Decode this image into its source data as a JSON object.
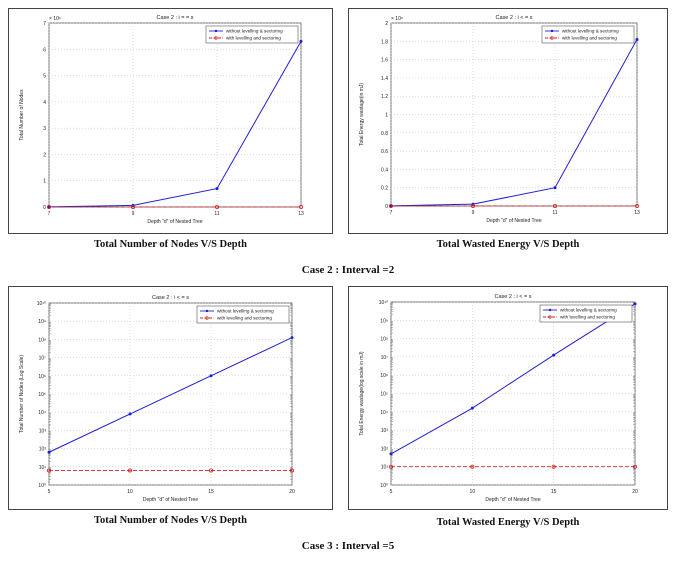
{
  "colors": {
    "primary": "#1f1fcf",
    "secondary": "#d02020"
  },
  "captions": {
    "c1": "Total Number of Nodes V/S Depth",
    "c2": "Total Wasted Energy V/S Depth",
    "case2": "Case 2 : Interval =2",
    "c3": "Total Number of Nodes V/S Depth",
    "c4": "Total Wasted Energy V/S Depth",
    "case3": "Case 3 : Interval =5"
  },
  "chart_data": [
    {
      "type": "line",
      "title": "Case 2 : i = = s",
      "xlabel": "Depth \"d\" of Nested Tree",
      "ylabel": "Total Number of Nodes",
      "exponent": "× 10⁶",
      "yscale": "linear",
      "xlim": [
        7,
        13
      ],
      "ylim": [
        0,
        7
      ],
      "xticks": [
        7,
        9,
        11,
        13
      ],
      "yticks": [
        0,
        1,
        2,
        3,
        4,
        5,
        6,
        7
      ],
      "grid": true,
      "legend": "top-right",
      "series": [
        {
          "name": "without levelling & sectoring",
          "x": [
            7,
            9,
            11,
            13
          ],
          "y": [
            0.005,
            0.06,
            0.7,
            6.3
          ]
        },
        {
          "name": "with levelling and sectoring",
          "x": [
            7,
            9,
            11,
            13
          ],
          "y": [
            0.001,
            0.001,
            0.001,
            0.001
          ]
        }
      ]
    },
    {
      "type": "line",
      "title": "Case 2 : i < = s",
      "xlabel": "Depth \"d\" of Nested Tree",
      "ylabel": "Total Energy wastage(in mJ)",
      "exponent": "× 10⁶",
      "yscale": "linear",
      "xlim": [
        7,
        13
      ],
      "ylim": [
        0,
        2
      ],
      "xticks": [
        7,
        9,
        11,
        13
      ],
      "yticks": [
        0,
        0.2,
        0.4,
        0.6,
        0.8,
        1,
        1.2,
        1.4,
        1.6,
        1.8,
        2
      ],
      "grid": true,
      "legend": "top-right",
      "series": [
        {
          "name": "without levelling & sectoring",
          "x": [
            7,
            9,
            11,
            13
          ],
          "y": [
            0.0015,
            0.02,
            0.2,
            1.82
          ]
        },
        {
          "name": "with levelling and sectoring",
          "x": [
            7,
            9,
            11,
            13
          ],
          "y": [
            0.0003,
            0.0003,
            0.0003,
            0.0003
          ]
        }
      ]
    },
    {
      "type": "line",
      "title": "Case 2 : i < = s",
      "xlabel": "Depth \"d\" of Nested Tree",
      "ylabel": "Total Number of Nodes (Log Scale)",
      "yscale": "log",
      "xlim": [
        5,
        20
      ],
      "ylim_exp": [
        0,
        10
      ],
      "xticks": [
        5,
        10,
        15,
        20
      ],
      "yticks_exp": [
        0,
        1,
        2,
        3,
        4,
        5,
        6,
        7,
        8,
        9,
        10
      ],
      "grid": true,
      "legend": "top-right",
      "series": [
        {
          "name": "without levelling & sectoring",
          "x": [
            5,
            10,
            15,
            20
          ],
          "y_exp": [
            1.8,
            3.9,
            6.0,
            8.1
          ]
        },
        {
          "name": "with levelling and sectoring",
          "x": [
            5,
            10,
            15,
            20
          ],
          "y_exp": [
            0.8,
            0.8,
            0.8,
            0.8
          ]
        }
      ]
    },
    {
      "type": "line",
      "title": "Case 2 : i < = s",
      "xlabel": "Depth \"d\" of Nested Tree",
      "ylabel": "Total Energy wastage(log scale in mJ)",
      "yscale": "log",
      "xlim": [
        5,
        20
      ],
      "ylim_exp": [
        0,
        10
      ],
      "xticks": [
        5,
        10,
        15,
        20
      ],
      "yticks_exp": [
        0,
        1,
        2,
        3,
        4,
        5,
        6,
        7,
        8,
        9,
        10
      ],
      "grid": true,
      "legend": "top-right",
      "series": [
        {
          "name": "without levelling & sectoring",
          "x": [
            5,
            10,
            15,
            20
          ],
          "y_exp": [
            1.7,
            4.2,
            7.1,
            9.9
          ]
        },
        {
          "name": "with levelling and sectoring",
          "x": [
            5,
            10,
            15,
            20
          ],
          "y_exp": [
            1.0,
            1.0,
            1.0,
            1.0
          ]
        }
      ]
    }
  ]
}
